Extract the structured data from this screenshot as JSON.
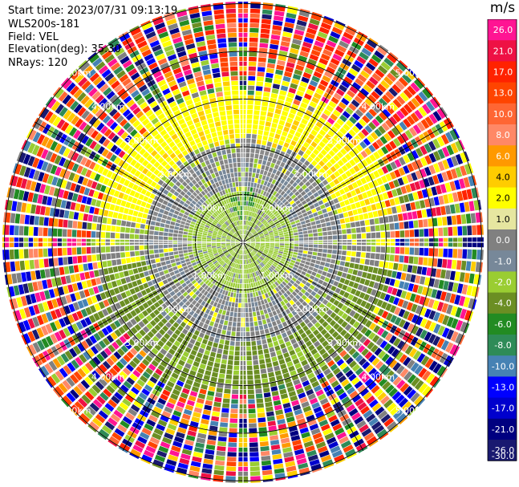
{
  "header": {
    "start_time": "Start time: 2023/07/31 09:13:19",
    "instrument": "WLS200s-181",
    "field": "Field: VEL",
    "elevation": "Elevation(deg): 35.30",
    "nrays": "NRays: 120"
  },
  "colorbar": {
    "unit": "m/s",
    "ticks": [
      "26.0",
      "21.0",
      "17.0",
      "13.0",
      "10.0",
      "8.0",
      "6.0",
      "4.0",
      "2.0",
      "1.0",
      "0.0",
      "-1.0",
      "-2.0",
      "-4.0",
      "-6.0",
      "-8.0",
      "-10.0",
      "-13.0",
      "-17.0",
      "-21.0",
      "-26.0",
      "-30.0"
    ],
    "band_colors": [
      "#ff1493",
      "#ee1144",
      "#ff2200",
      "#ff4400",
      "#ff6633",
      "#ff8866",
      "#ff9900",
      "#ffcc00",
      "#ffff00",
      "#e6e6a0",
      "#808080",
      "#778899",
      "#9acd32",
      "#6b8e23",
      "#228b22",
      "#2e8b57",
      "#4682b4",
      "#0000ff",
      "#0000cd",
      "#000080",
      "#191970"
    ]
  },
  "chart_data": {
    "type": "ppi",
    "field": "VEL",
    "nrays": 120,
    "range_rings_km": [
      1.0,
      2.0,
      3.0,
      4.0,
      5.0
    ],
    "ring_labels": [
      "1.00km",
      "2.00km",
      "3.00km",
      "4.00km",
      "5.00km"
    ],
    "azimuth_spokes_deg": [
      0,
      30,
      60,
      90,
      120,
      150,
      180,
      210,
      240,
      270,
      300,
      330
    ],
    "max_range_km": 5.0,
    "center_velocity_ms": 0.0,
    "zones": [
      {
        "range_km": [
          0.0,
          1.2
        ],
        "dominant": "light green",
        "velocity_ms": -1.5
      },
      {
        "range_km": [
          1.2,
          2.2
        ],
        "dominant": "gray",
        "velocity_ms": 0.0
      },
      {
        "range_km": [
          2.2,
          3.0
        ],
        "dominant": "yellow (north) / olive (south)",
        "velocity_ms": [
          2.0,
          -3.0
        ]
      },
      {
        "range_km": [
          3.0,
          5.5
        ],
        "dominant": "noise",
        "velocity_ms": "mixed"
      }
    ]
  }
}
